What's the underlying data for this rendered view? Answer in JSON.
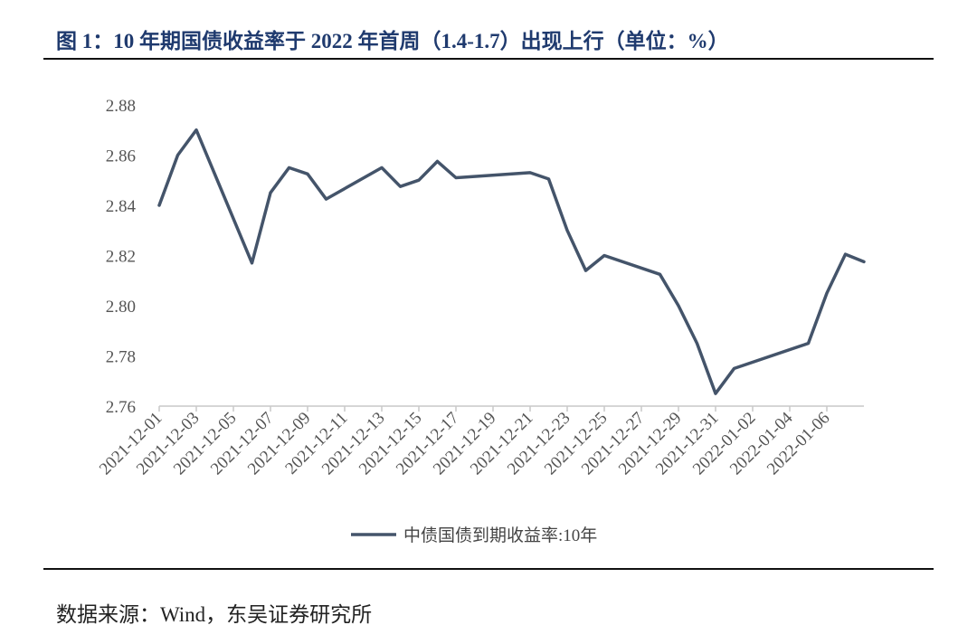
{
  "header": {
    "title": "图 1：10 年期国债收益率于 2022 年首周（1.4-1.7）出现上行（单位：%）"
  },
  "footer": {
    "source": "数据来源：Wind，东吴证券研究所"
  },
  "colors": {
    "line": "#44546a",
    "title": "#1f3a6e"
  },
  "chart_data": {
    "type": "line",
    "title": "图 1：10 年期国债收益率于 2022 年首周（1.4-1.7）出现上行（单位：%）",
    "xlabel": "",
    "ylabel": "",
    "ylim": [
      2.76,
      2.88
    ],
    "yticks": [
      "2.88",
      "2.86",
      "2.84",
      "2.82",
      "2.80",
      "2.78",
      "2.76"
    ],
    "ytick_values": [
      2.88,
      2.86,
      2.84,
      2.82,
      2.8,
      2.78,
      2.76
    ],
    "x_tick_labels": [
      "2021-12-01",
      "2021-12-03",
      "2021-12-05",
      "2021-12-07",
      "2021-12-09",
      "2021-12-11",
      "2021-12-13",
      "2021-12-15",
      "2021-12-17",
      "2021-12-19",
      "2021-12-21",
      "2021-12-23",
      "2021-12-25",
      "2021-12-27",
      "2021-12-29",
      "2021-12-31",
      "2022-01-02",
      "2022-01-04",
      "2022-01-06"
    ],
    "x_tick_day_index": [
      0,
      2,
      4,
      6,
      8,
      10,
      12,
      14,
      16,
      18,
      20,
      22,
      24,
      26,
      28,
      30,
      32,
      34,
      36
    ],
    "x_day_range": [
      0,
      38
    ],
    "legend": {
      "label": "中债国债到期收益率:10年",
      "position": "bottom"
    },
    "series": [
      {
        "name": "中债国债到期收益率:10年",
        "points": [
          {
            "day": 0,
            "value": 2.84
          },
          {
            "day": 1,
            "value": 2.86
          },
          {
            "day": 2,
            "value": 2.87
          },
          {
            "day": 5,
            "value": 2.817
          },
          {
            "day": 6,
            "value": 2.845
          },
          {
            "day": 7,
            "value": 2.855
          },
          {
            "day": 8,
            "value": 2.8525
          },
          {
            "day": 9,
            "value": 2.8425
          },
          {
            "day": 12,
            "value": 2.855
          },
          {
            "day": 13,
            "value": 2.8475
          },
          {
            "day": 14,
            "value": 2.85
          },
          {
            "day": 15,
            "value": 2.8575
          },
          {
            "day": 16,
            "value": 2.851
          },
          {
            "day": 20,
            "value": 2.853
          },
          {
            "day": 21,
            "value": 2.8505
          },
          {
            "day": 22,
            "value": 2.83
          },
          {
            "day": 23,
            "value": 2.814
          },
          {
            "day": 24,
            "value": 2.82
          },
          {
            "day": 27,
            "value": 2.8125
          },
          {
            "day": 28,
            "value": 2.8
          },
          {
            "day": 29,
            "value": 2.785
          },
          {
            "day": 30,
            "value": 2.765
          },
          {
            "day": 31,
            "value": 2.775
          },
          {
            "day": 35,
            "value": 2.785
          },
          {
            "day": 36,
            "value": 2.805
          },
          {
            "day": 37,
            "value": 2.8205
          },
          {
            "day": 38,
            "value": 2.8175
          }
        ]
      }
    ]
  }
}
